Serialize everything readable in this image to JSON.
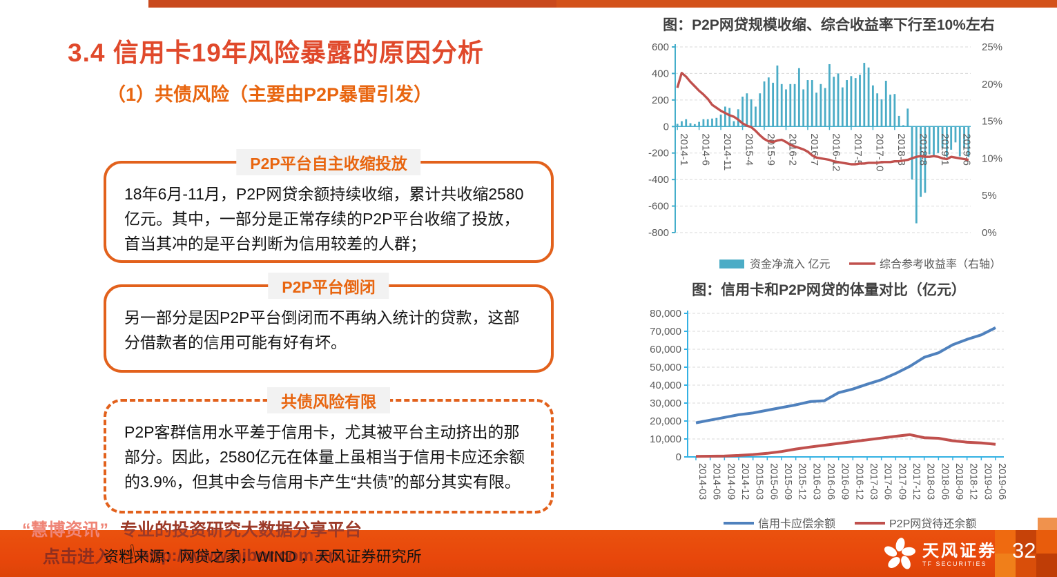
{
  "slide": {
    "title": "3.4 信用卡19年风险暴露的原因分析",
    "subtitle": "（1）共债风险（主要由P2P暴雷引发）",
    "page_number": "32"
  },
  "boxes": [
    {
      "header": "P2P平台自主收缩投放",
      "body": "18年6月-11月，P2P网贷余额持续收缩，累计共收缩2580亿元。其中，一部分是正常存续的P2P平台收缩了投放，首当其冲的是平台判断为信用较差的人群；",
      "border": "solid"
    },
    {
      "header": "P2P平台倒闭",
      "body": "另一部分是因P2P平台倒闭而不再纳入统计的贷款，这部分借款者的信用可能有好有坏。",
      "border": "solid"
    },
    {
      "header": "共债风险有限",
      "body": "P2P客群信用水平差于信用卡，尤其被平台主动挤出的那部分。因此，2580亿元在体量上虽相当于信用卡应还余额的3.9%，但其中会与信用卡产生“共债”的部分其实有限。",
      "border": "dashed"
    }
  ],
  "footer": {
    "source": "资料来源：网贷之家，WIND ，天风证券研究所",
    "watermark_brand": "“慧博资讯”",
    "watermark_tagline": "专业的投资研究大数据分享平台",
    "watermark_click": "点击进入",
    "watermark_url": "http://www.hibor.com.cn",
    "logo_cn": "天风证券",
    "logo_en": "TF SECURITIES"
  },
  "colors": {
    "accent_orange": "#e2611c",
    "title_red": "#e0492b",
    "subtitle_orange": "#e8650f",
    "bar_teal": "#4BACC6",
    "line_red": "#C0504D",
    "line_blue": "#4F81BD",
    "axis_teal_chart1": "#45AECB",
    "axis_blue_chart2": "#33B1E3",
    "grid_gray": "#D9D9D9",
    "tick_text": "#595959",
    "footer_bar": "#E8470B"
  },
  "chart_data": [
    {
      "type": "bar",
      "subtype": "combo-bar-line-dual-axis",
      "title": "图：P2P网贷规模收缩、综合收益率下行至10%左右",
      "x_start": "2014-1",
      "x_tick_every": 5,
      "x_tick_labels": [
        "2014-1",
        "2014-6",
        "2014-11",
        "2015-4",
        "2015-9",
        "2016-2",
        "2016-7",
        "2016-12",
        "2017-5",
        "2017-10",
        "2018-3",
        "2018-8",
        "2019-1",
        "2019-6"
      ],
      "left_axis": {
        "min": -800,
        "max": 600,
        "step": 200
      },
      "right_axis": {
        "min": 0,
        "max": 25,
        "step": 5,
        "suffix": "%"
      },
      "bars": {
        "name": "资金净流入 亿元",
        "color": "#4BACC6",
        "values": [
          20,
          40,
          55,
          25,
          18,
          35,
          55,
          55,
          60,
          65,
          90,
          150,
          140,
          40,
          130,
          225,
          250,
          205,
          150,
          250,
          340,
          370,
          330,
          460,
          320,
          280,
          320,
          320,
          440,
          280,
          350,
          350,
          255,
          320,
          290,
          470,
          375,
          400,
          295,
          350,
          380,
          365,
          390,
          480,
          445,
          310,
          250,
          205,
          345,
          240,
          245,
          80,
          10,
          135,
          -400,
          -730,
          -530,
          -500,
          -210,
          -215,
          -200,
          -160,
          -230,
          -175,
          -120,
          -225,
          -165,
          -230
        ]
      },
      "line": {
        "name": "综合参考收益率（右轴）",
        "color": "#C0504D",
        "values": [
          19.5,
          21.5,
          21.0,
          20.3,
          19.7,
          19.1,
          18.6,
          18.0,
          17.2,
          16.8,
          16.4,
          16.1,
          15.8,
          15.6,
          15.2,
          14.7,
          14.4,
          14.2,
          13.7,
          13.1,
          12.6,
          12.3,
          12.2,
          12.4,
          12.5,
          12.2,
          11.8,
          11.6,
          11.4,
          11.2,
          10.9,
          10.4,
          10.1,
          10.0,
          9.9,
          9.8,
          9.6,
          9.5,
          9.4,
          9.3,
          9.2,
          9.2,
          9.3,
          9.3,
          9.4,
          9.4,
          9.4,
          9.5,
          9.5,
          9.5,
          9.6,
          9.6,
          9.7,
          9.8,
          10.0,
          10.2,
          10.3,
          10.2,
          10.2,
          10.3,
          10.2,
          10.0,
          9.9,
          10.2,
          10.1,
          10.0,
          9.9,
          9.8
        ]
      },
      "legend_position": "bottom",
      "grid": true
    },
    {
      "type": "line",
      "title": "图：信用卡和P2P网贷的体量对比（亿元）",
      "categories": [
        "2014-03",
        "2014-06",
        "2014-09",
        "2014-12",
        "2015-03",
        "2015-06",
        "2015-09",
        "2015-12",
        "2016-03",
        "2016-06",
        "2016-09",
        "2016-12",
        "2017-03",
        "2017-06",
        "2017-09",
        "2017-12",
        "2018-03",
        "2018-06",
        "2018-09",
        "2018-12",
        "2019-03",
        "2019-06"
      ],
      "y_axis": {
        "min": 0,
        "max": 80000,
        "step": 10000
      },
      "series": [
        {
          "name": "信用卡应偿余额",
          "color": "#4F81BD",
          "values": [
            19000,
            20500,
            22000,
            23500,
            24500,
            26000,
            27500,
            29000,
            30800,
            31300,
            35800,
            37800,
            40500,
            43000,
            46500,
            50500,
            55500,
            58000,
            62500,
            65500,
            68000,
            72000
          ]
        },
        {
          "name": "P2P网贷待还余额",
          "color": "#C0504D",
          "values": [
            300,
            400,
            500,
            800,
            1300,
            2000,
            3000,
            4400,
            5500,
            6500,
            7500,
            8500,
            9500,
            10500,
            11500,
            12400,
            10700,
            10400,
            9000,
            8200,
            7800,
            7000
          ]
        }
      ],
      "legend_position": "bottom",
      "grid": true
    }
  ]
}
